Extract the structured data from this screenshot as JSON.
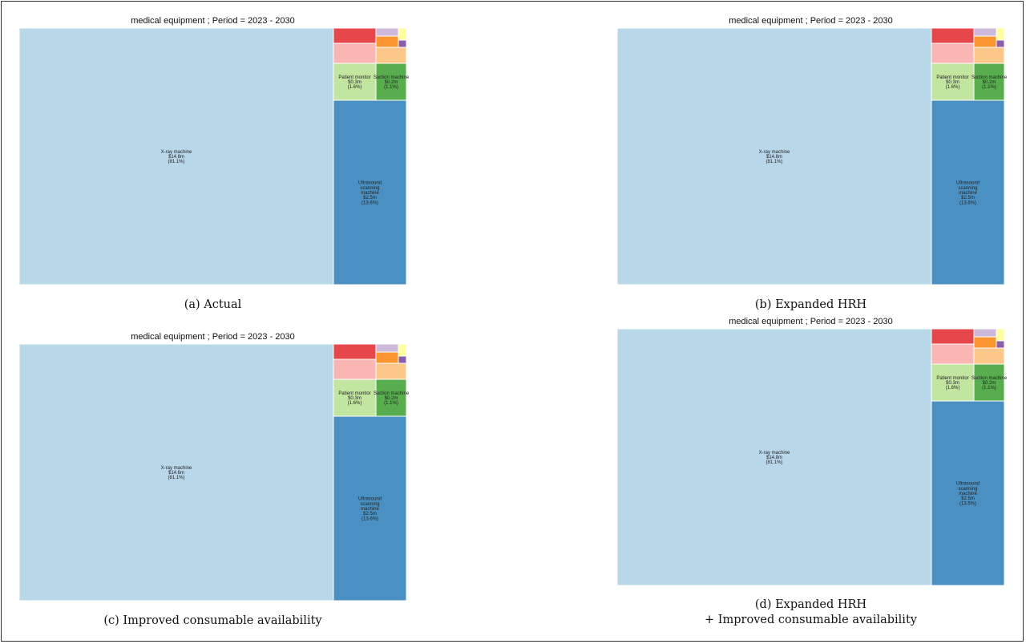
{
  "chart_data": [
    {
      "type": "treemap",
      "title": "medical equipment ; Period = 2023 - 2030",
      "caption": [
        "(a) Actual"
      ],
      "tiles": [
        {
          "name": "X-ray machine",
          "value": "$14.8m",
          "share": "(81.1%)",
          "color": "#b8d7e9"
        },
        {
          "name": "Ultrasound scanning machine",
          "value": "$2.5m",
          "share": "(13.6%)",
          "color": "#4a90c2"
        },
        {
          "name": "Patient monitor",
          "value": "$0.3m",
          "share": "(1.6%)",
          "color": "#c2e5a0"
        },
        {
          "name": "Suction machine",
          "value": "$0.2m",
          "share": "(1.1%)",
          "color": "#58ad4e"
        },
        {
          "color": "#f9b6b5"
        },
        {
          "color": "#fcc78a"
        },
        {
          "color": "#e5474b"
        },
        {
          "color": "#f9962f"
        },
        {
          "color": "#cdb9da"
        },
        {
          "color": "#8a5ea8"
        },
        {
          "color": "#feff9f"
        }
      ]
    },
    {
      "type": "treemap",
      "title": "medical equipment ; Period = 2023 - 2030",
      "caption": [
        "(b) Expanded HRH"
      ],
      "tiles": [
        {
          "name": "X-ray machine",
          "value": "$14.8m",
          "share": "(81.1%)",
          "color": "#b8d7e9"
        },
        {
          "name": "Ultrasound scanning machine",
          "value": "$2.5m",
          "share": "(13.6%)",
          "color": "#4a90c2"
        },
        {
          "name": "Patient monitor",
          "value": "$0.3m",
          "share": "(1.6%)",
          "color": "#c2e5a0"
        },
        {
          "name": "Suction machine",
          "value": "$0.2m",
          "share": "(1.1%)",
          "color": "#58ad4e"
        },
        {
          "color": "#f9b6b5"
        },
        {
          "color": "#fcc78a"
        },
        {
          "color": "#e5474b"
        },
        {
          "color": "#f9962f"
        },
        {
          "color": "#cdb9da"
        },
        {
          "color": "#8a5ea8"
        },
        {
          "color": "#feff9f"
        }
      ]
    },
    {
      "type": "treemap",
      "title": "medical equipment ; Period = 2023 - 2030",
      "caption": [
        "(c) Improved consumable availability"
      ],
      "tiles": [
        {
          "name": "X-ray machine",
          "value": "$14.6m",
          "share": "(81.1%)",
          "color": "#b8d7e9"
        },
        {
          "name": "Ultrasound scanning machine",
          "value": "$2.5m",
          "share": "(13.6%)",
          "color": "#4a90c2"
        },
        {
          "name": "Patient monitor",
          "value": "$0.3m",
          "share": "(1.6%)",
          "color": "#c2e5a0"
        },
        {
          "name": "Suction machine",
          "value": "$0.2m",
          "share": "(1.1%)",
          "color": "#58ad4e"
        },
        {
          "color": "#f9b6b5"
        },
        {
          "color": "#fcc78a"
        },
        {
          "color": "#e5474b"
        },
        {
          "color": "#f9962f"
        },
        {
          "color": "#cdb9da"
        },
        {
          "color": "#8a5ea8"
        },
        {
          "color": "#feff9f"
        }
      ]
    },
    {
      "type": "treemap",
      "title": "medical equipment ; Period = 2023 - 2030",
      "caption": [
        "(d) Expanded HRH",
        "+ Improved consumable availability"
      ],
      "tiles": [
        {
          "name": "X-ray machine",
          "value": "$14.8m",
          "share": "(81.1%)",
          "color": "#b8d7e9"
        },
        {
          "name": "Ultrasound scanning machine",
          "value": "$2.5m",
          "share": "(13.5%)",
          "color": "#4a90c2"
        },
        {
          "name": "Patient monitor",
          "value": "$0.3m",
          "share": "(1.6%)",
          "color": "#c2e5a0"
        },
        {
          "name": "Suction machine",
          "value": "$0.2m",
          "share": "(1.1%)",
          "color": "#58ad4e"
        },
        {
          "color": "#f9b6b5"
        },
        {
          "color": "#fcc78a"
        },
        {
          "color": "#e5474b"
        },
        {
          "color": "#f9962f"
        },
        {
          "color": "#cdb9da"
        },
        {
          "color": "#8a5ea8"
        },
        {
          "color": "#feff9f"
        }
      ]
    }
  ]
}
